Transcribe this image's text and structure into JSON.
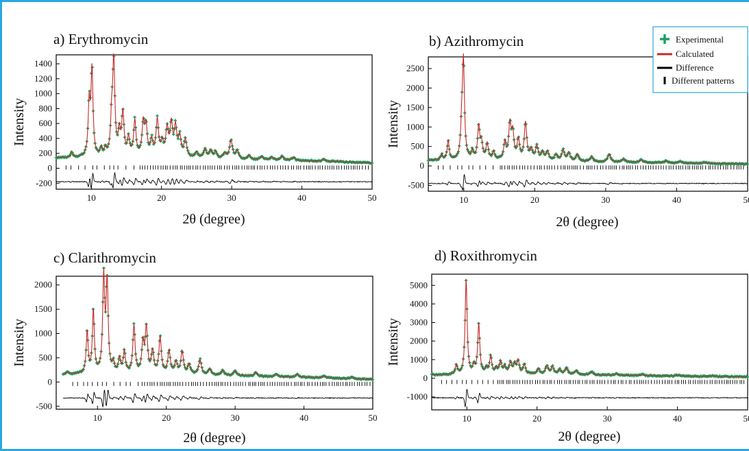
{
  "colors": {
    "experimental": "#1fa060",
    "calculated": "#c62828",
    "difference": "#000000",
    "frame": "#29a8e0",
    "legend_border": "#29a8e0"
  },
  "legend": {
    "experimental": "Experimental",
    "calculated": "Calculated",
    "difference": "Difference",
    "patterns": "Different patterns"
  },
  "chart_data": [
    {
      "type": "line",
      "panel": "a",
      "title": "a) Erythromycin",
      "xlabel": "2θ (degree)",
      "ylabel": "Intensity",
      "xlim": [
        5,
        50
      ],
      "ylim": [
        -280,
        1520
      ],
      "xticks": [
        10,
        20,
        30,
        40,
        50
      ],
      "yticks": [
        -200,
        0,
        200,
        400,
        600,
        800,
        1000,
        1200,
        1400
      ],
      "background": [
        [
          5,
          140
        ],
        [
          10,
          145
        ],
        [
          15,
          150
        ],
        [
          20,
          148
        ],
        [
          25,
          130
        ],
        [
          30,
          115
        ],
        [
          35,
          108
        ],
        [
          40,
          100
        ],
        [
          45,
          90
        ],
        [
          50,
          70
        ]
      ],
      "peaks": [
        [
          7.2,
          70
        ],
        [
          9.7,
          700
        ],
        [
          10.1,
          1150
        ],
        [
          11.4,
          100
        ],
        [
          12.0,
          90
        ],
        [
          12.9,
          450
        ],
        [
          13.2,
          1250
        ],
        [
          14.0,
          300
        ],
        [
          14.5,
          570
        ],
        [
          15.3,
          230
        ],
        [
          16.2,
          470
        ],
        [
          17.4,
          430
        ],
        [
          17.8,
          380
        ],
        [
          18.6,
          200
        ],
        [
          19.4,
          480
        ],
        [
          20.1,
          180
        ],
        [
          20.8,
          360
        ],
        [
          21.4,
          420
        ],
        [
          22.0,
          380
        ],
        [
          22.6,
          260
        ],
        [
          23.4,
          230
        ],
        [
          25.0,
          80
        ],
        [
          26.2,
          120
        ],
        [
          27.0,
          100
        ],
        [
          27.7,
          90
        ],
        [
          29.0,
          70
        ],
        [
          29.9,
          250
        ],
        [
          30.8,
          110
        ],
        [
          32.5,
          60
        ],
        [
          34.3,
          50
        ],
        [
          35.7,
          40
        ],
        [
          37.2,
          50
        ],
        [
          38.8,
          40
        ],
        [
          43.1,
          25
        ]
      ],
      "difference_offset": -180,
      "reflection_y": 10,
      "sparse_reflections_below": 16.5
    },
    {
      "type": "line",
      "panel": "b",
      "title": "b) Azithromycin",
      "xlabel": "2θ (degree)",
      "ylabel": "Intensity",
      "xlim": [
        5,
        50
      ],
      "ylim": [
        -650,
        2800
      ],
      "xticks": [
        10,
        20,
        30,
        40,
        50
      ],
      "yticks": [
        -500,
        0,
        500,
        1000,
        1500,
        2000,
        2500
      ],
      "background": [
        [
          5,
          140
        ],
        [
          10,
          150
        ],
        [
          15,
          150
        ],
        [
          20,
          140
        ],
        [
          25,
          120
        ],
        [
          30,
          100
        ],
        [
          35,
          90
        ],
        [
          40,
          75
        ],
        [
          45,
          60
        ],
        [
          50,
          50
        ]
      ],
      "peaks": [
        [
          6.9,
          150
        ],
        [
          7.8,
          500
        ],
        [
          9.7,
          700
        ],
        [
          9.95,
          2500
        ],
        [
          11.2,
          200
        ],
        [
          12.1,
          850
        ],
        [
          12.5,
          400
        ],
        [
          13.3,
          400
        ],
        [
          14.2,
          200
        ],
        [
          15.8,
          430
        ],
        [
          16.5,
          880
        ],
        [
          16.9,
          650
        ],
        [
          17.7,
          500
        ],
        [
          18.7,
          950
        ],
        [
          19.5,
          250
        ],
        [
          20.3,
          350
        ],
        [
          21.1,
          200
        ],
        [
          21.8,
          230
        ],
        [
          23.0,
          150
        ],
        [
          24.0,
          270
        ],
        [
          24.8,
          200
        ],
        [
          26.0,
          170
        ],
        [
          28.0,
          120
        ],
        [
          30.5,
          200
        ],
        [
          32.5,
          80
        ],
        [
          35.0,
          60
        ],
        [
          38.5,
          50
        ],
        [
          40.5,
          40
        ],
        [
          44.0,
          30
        ]
      ],
      "difference_offset": -450,
      "reflection_y": -40,
      "sparse_reflections_below": 15
    },
    {
      "type": "line",
      "panel": "c",
      "title": "c) Clarithromycin",
      "xlabel": "2θ (degree)",
      "ylabel": "Intensity",
      "xlim": [
        4,
        50
      ],
      "ylim": [
        -560,
        2180
      ],
      "xticks": [
        10,
        20,
        30,
        40,
        50
      ],
      "yticks": [
        -500,
        0,
        500,
        1000,
        1500,
        2000
      ],
      "background": [
        [
          5,
          160
        ],
        [
          10,
          170
        ],
        [
          15,
          170
        ],
        [
          20,
          160
        ],
        [
          25,
          150
        ],
        [
          30,
          130
        ],
        [
          35,
          110
        ],
        [
          40,
          95
        ],
        [
          45,
          75
        ],
        [
          50,
          55
        ]
      ],
      "peaks": [
        [
          5.6,
          40
        ],
        [
          8.5,
          870
        ],
        [
          9.4,
          1300
        ],
        [
          10.9,
          1950
        ],
        [
          11.4,
          1850
        ],
        [
          12.3,
          200
        ],
        [
          13.2,
          300
        ],
        [
          13.9,
          440
        ],
        [
          15.3,
          980
        ],
        [
          16.6,
          600
        ],
        [
          17.1,
          920
        ],
        [
          18.0,
          450
        ],
        [
          19.1,
          740
        ],
        [
          20.4,
          470
        ],
        [
          21.4,
          240
        ],
        [
          22.3,
          460
        ],
        [
          23.3,
          200
        ],
        [
          24.9,
          300
        ],
        [
          26.3,
          120
        ],
        [
          28.2,
          100
        ],
        [
          30.0,
          100
        ],
        [
          33.0,
          80
        ],
        [
          36.0,
          50
        ],
        [
          39.0,
          60
        ],
        [
          43.0,
          40
        ],
        [
          47.0,
          30
        ]
      ],
      "difference_offset": -330,
      "reflection_y": -40,
      "sparse_reflections_below": 16
    },
    {
      "type": "line",
      "panel": "d",
      "title": "d) Roxithromycin",
      "xlabel": "2θ (degree)",
      "ylabel": "Intensity",
      "xlim": [
        5,
        50
      ],
      "ylim": [
        -1700,
        5600
      ],
      "xticks": [
        10,
        20,
        30,
        40,
        50
      ],
      "yticks": [
        -1000,
        0,
        1000,
        2000,
        3000,
        4000,
        5000
      ],
      "background": [
        [
          5,
          180
        ],
        [
          10,
          200
        ],
        [
          15,
          220
        ],
        [
          20,
          220
        ],
        [
          25,
          200
        ],
        [
          30,
          170
        ],
        [
          35,
          140
        ],
        [
          40,
          120
        ],
        [
          45,
          100
        ],
        [
          50,
          80
        ]
      ],
      "peaks": [
        [
          8.5,
          500
        ],
        [
          9.9,
          5100
        ],
        [
          11.0,
          400
        ],
        [
          11.7,
          2700
        ],
        [
          12.8,
          300
        ],
        [
          13.4,
          950
        ],
        [
          14.2,
          300
        ],
        [
          14.8,
          650
        ],
        [
          15.4,
          400
        ],
        [
          16.2,
          600
        ],
        [
          16.8,
          500
        ],
        [
          17.3,
          700
        ],
        [
          18.2,
          500
        ],
        [
          20.2,
          300
        ],
        [
          21.4,
          450
        ],
        [
          22.2,
          400
        ],
        [
          23.2,
          250
        ],
        [
          24.2,
          350
        ],
        [
          25.6,
          200
        ],
        [
          27.8,
          150
        ],
        [
          31.3,
          80
        ],
        [
          35.0,
          60
        ],
        [
          40.0,
          50
        ],
        [
          45.0,
          40
        ]
      ],
      "difference_offset": -1050,
      "reflection_y": -200,
      "sparse_reflections_below": 14
    }
  ]
}
